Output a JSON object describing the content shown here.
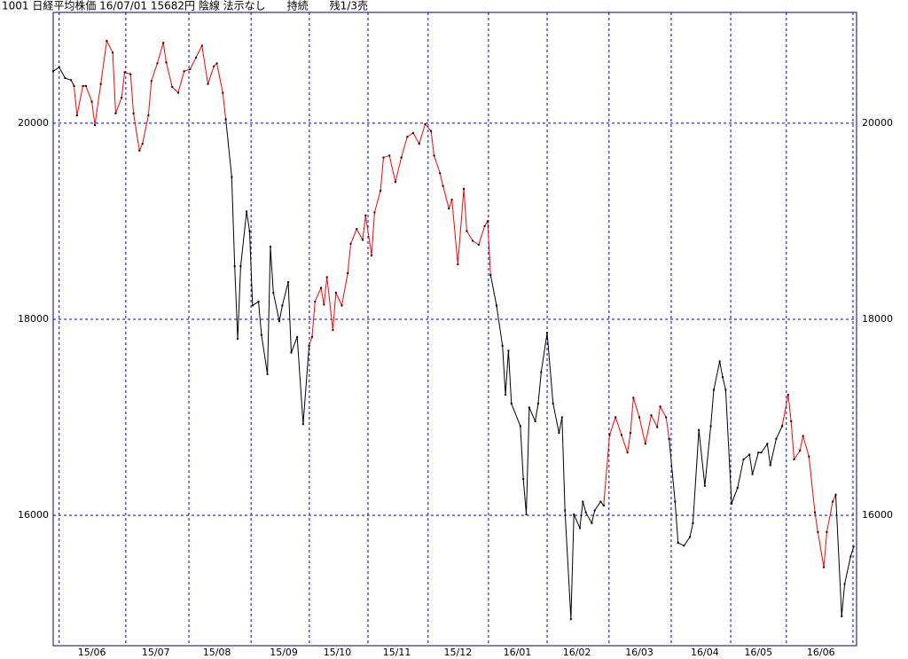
{
  "chart_data": {
    "type": "line",
    "title": "1001 日経平均株価 16/07/01 15682円 陰線 法示なし　　持続　　残1/3売",
    "xlim": [
      0,
      270
    ],
    "ylim": [
      14670,
      21130
    ],
    "yticks": [
      16000,
      18000,
      20000
    ],
    "xticks": [
      {
        "value": 13,
        "label": "15/06"
      },
      {
        "value": 34.5,
        "label": "15/07"
      },
      {
        "value": 55,
        "label": "15/08"
      },
      {
        "value": 77.5,
        "label": "15/09"
      },
      {
        "value": 95.5,
        "label": "15/10"
      },
      {
        "value": 115.5,
        "label": "15/11"
      },
      {
        "value": 136,
        "label": "15/12"
      },
      {
        "value": 156,
        "label": "16/01"
      },
      {
        "value": 176,
        "label": "16/02"
      },
      {
        "value": 197,
        "label": "16/03"
      },
      {
        "value": 219,
        "label": "16/04"
      },
      {
        "value": 237,
        "label": "16/05"
      },
      {
        "value": 258,
        "label": "16/06"
      }
    ],
    "xgrid": [
      2,
      24.4,
      45.6,
      66.5,
      86.1,
      105.8,
      126,
      146.3,
      166,
      186.8,
      207.7,
      227.7,
      246.4,
      268.8
    ],
    "grid": true,
    "series": [
      {
        "color": "#000000",
        "x": [
          0,
          2,
          4,
          6,
          7
        ],
        "values": [
          20530,
          20570,
          20460,
          20440,
          20380
        ]
      },
      {
        "color": "#ff0000",
        "x": [
          7,
          8,
          10,
          11,
          13,
          14,
          16,
          18,
          20,
          21,
          23,
          24,
          26,
          27,
          29,
          30,
          32,
          33,
          35,
          37,
          38,
          40,
          42,
          44,
          46,
          48,
          50,
          52,
          54,
          55,
          57,
          58
        ],
        "values": [
          20380,
          20080,
          20380,
          20380,
          20220,
          19980,
          20400,
          20840,
          20720,
          20100,
          20260,
          20520,
          20500,
          20100,
          19720,
          19790,
          20080,
          20430,
          20610,
          20820,
          20620,
          20370,
          20310,
          20530,
          20550,
          20670,
          20790,
          20400,
          20580,
          20610,
          20310,
          20040
        ]
      },
      {
        "color": "#000000",
        "x": [
          58,
          60,
          61,
          62,
          63,
          65,
          66,
          67,
          69,
          70,
          72,
          73,
          74,
          76,
          77,
          79,
          80,
          82,
          84,
          86
        ],
        "values": [
          20040,
          19450,
          18540,
          17800,
          18540,
          19100,
          18900,
          18140,
          18180,
          17840,
          17440,
          18740,
          18270,
          17980,
          18140,
          18380,
          17660,
          17820,
          16930,
          17730
        ]
      },
      {
        "color": "#ff0000",
        "x": [
          86,
          87,
          88,
          90,
          91,
          92,
          94,
          95,
          97,
          99,
          100,
          102,
          104,
          105,
          107,
          108,
          110,
          111,
          113,
          115,
          117,
          119,
          121,
          123,
          125,
          127,
          128,
          130,
          131,
          133,
          134,
          136,
          138,
          139,
          141,
          143,
          145,
          146,
          147
        ],
        "values": [
          17730,
          17820,
          18180,
          18320,
          18150,
          18430,
          17890,
          18270,
          18140,
          18470,
          18770,
          18920,
          18810,
          19060,
          18650,
          19090,
          19310,
          19650,
          19670,
          19400,
          19650,
          19860,
          19900,
          19790,
          19990,
          19920,
          19670,
          19490,
          19360,
          19130,
          19220,
          18560,
          19330,
          18900,
          18800,
          18760,
          18950,
          19000,
          18450
        ]
      },
      {
        "color": "#000000",
        "x": [
          147,
          149,
          151,
          152,
          153,
          154,
          157,
          158,
          159,
          160,
          162,
          163,
          164,
          166,
          168,
          170,
          171,
          172,
          174,
          175,
          177,
          178,
          179,
          181,
          182,
          184,
          185
        ],
        "values": [
          18450,
          18140,
          17730,
          17230,
          17680,
          17140,
          16910,
          16370,
          16010,
          17100,
          16960,
          17140,
          17460,
          17860,
          17140,
          16840,
          17000,
          16050,
          14940,
          16010,
          15870,
          16140,
          16030,
          15920,
          16050,
          16140,
          16100
        ]
      },
      {
        "color": "#ff0000",
        "x": [
          185,
          187,
          189,
          191,
          193,
          194,
          195,
          197,
          199,
          201,
          203,
          204,
          206,
          207
        ],
        "values": [
          16100,
          16820,
          17000,
          16820,
          16640,
          16840,
          17200,
          17000,
          16730,
          17020,
          16900,
          17110,
          17000,
          16780
        ]
      },
      {
        "color": "#000000",
        "x": [
          207,
          209,
          210,
          212,
          214,
          215,
          217,
          219,
          221,
          222,
          224,
          225,
          226,
          228,
          230,
          232,
          234,
          235,
          237,
          238,
          240,
          241,
          243,
          245
        ],
        "values": [
          16780,
          16140,
          15720,
          15690,
          15780,
          15920,
          16870,
          16300,
          16910,
          17280,
          17570,
          17410,
          17280,
          16120,
          16280,
          16570,
          16620,
          16420,
          16640,
          16640,
          16730,
          16510,
          16780,
          16910
        ]
      },
      {
        "color": "#ff0000",
        "x": [
          245,
          247,
          248,
          249,
          251,
          252,
          254,
          256,
          257,
          259,
          260,
          262,
          263
        ],
        "values": [
          16910,
          17230,
          16960,
          16570,
          16660,
          16810,
          16600,
          16030,
          15830,
          15470,
          15830,
          16140,
          16210
        ]
      },
      {
        "color": "#000000",
        "x": [
          263,
          265,
          266,
          268,
          269
        ],
        "values": [
          16210,
          14970,
          15300,
          15580,
          15680
        ]
      }
    ]
  }
}
